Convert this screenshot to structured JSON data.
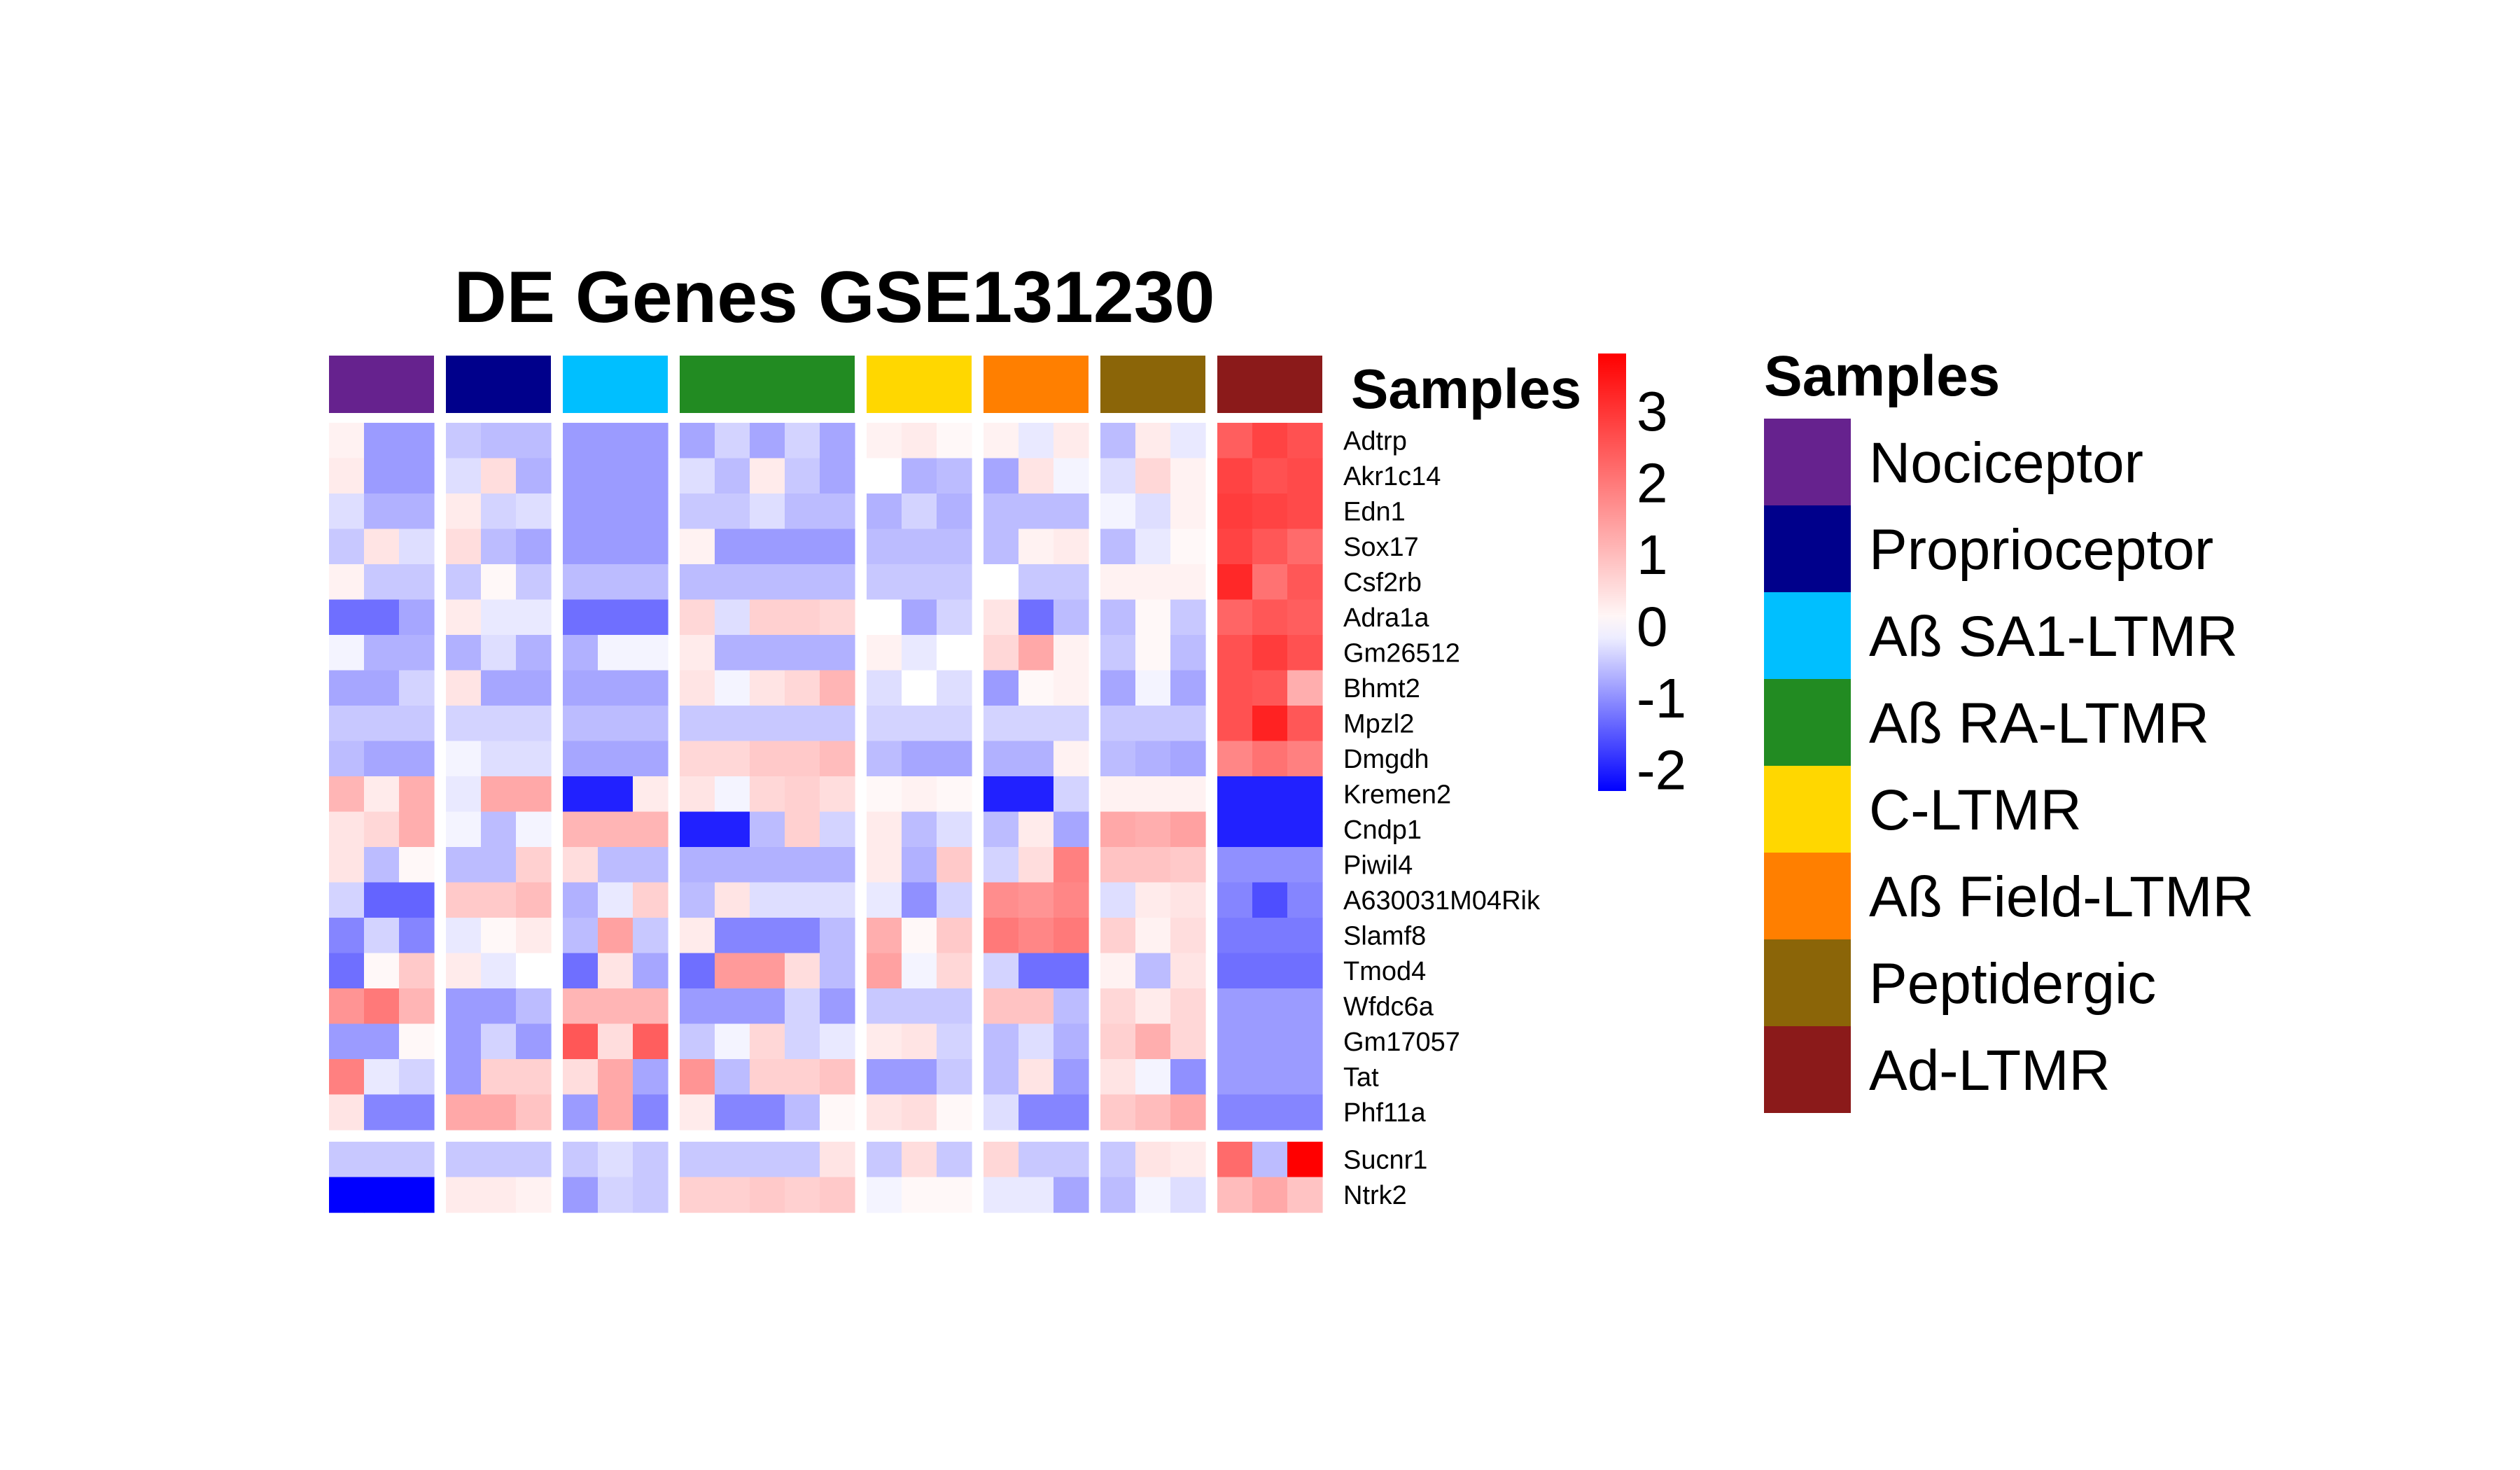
{
  "chart_data": {
    "type": "heatmap",
    "title": "DE Genes GSE131230",
    "annotation_title": "Samples",
    "legend_title": "Samples",
    "scale": {
      "min": -2.3,
      "max": 3.8,
      "ticks": [
        3,
        2,
        1,
        0,
        -1,
        -2
      ],
      "tick_labels": [
        "3",
        "2",
        "1",
        "0",
        "-1",
        "-2"
      ],
      "low_color": "#0000FF",
      "mid_color": "#FFFFFF",
      "high_color": "#FF0000"
    },
    "groups": [
      {
        "name": "Nociceptor",
        "color": "#66228E",
        "n": 3
      },
      {
        "name": "Proprioceptor",
        "color": "#00008B",
        "n": 3
      },
      {
        "name": "Aß SA1-LTMR",
        "color": "#00BFFF",
        "n": 3
      },
      {
        "name": "Aß RA-LTMR",
        "color": "#228B22",
        "n": 5
      },
      {
        "name": "C-LTMR",
        "color": "#FFD700",
        "n": 3
      },
      {
        "name": "Aß Field-LTMR",
        "color": "#FF7F00",
        "n": 3
      },
      {
        "name": "Peptidergic",
        "color": "#8B6508",
        "n": 3
      },
      {
        "name": "Ad-LTMR",
        "color": "#8B1A1A",
        "n": 3
      }
    ],
    "row_split_after": 20,
    "genes": [
      "Adtrp",
      "Akr1c14",
      "Edn1",
      "Sox17",
      "Csf2rb",
      "Adra1a",
      "Gm26512",
      "Bhmt2",
      "Mpzl2",
      "Dmgdh",
      "Kremen2",
      "Cndp1",
      "Piwil4",
      "A630031M04Rik",
      "Slamf8",
      "Tmod4",
      "Wfdc6a",
      "Gm17057",
      "Tat",
      "Phf11a",
      "Sucnr1",
      "Ntrk2"
    ],
    "values": [
      [
        0.2,
        -0.9,
        -0.9,
        -0.5,
        -0.6,
        -0.6,
        -0.9,
        -0.9,
        -0.9,
        -0.8,
        -0.4,
        -0.8,
        -0.4,
        -0.8,
        0.2,
        0.3,
        0.1,
        0.2,
        -0.2,
        0.3,
        -0.6,
        0.3,
        -0.2,
        2.4,
        2.8,
        2.6
      ],
      [
        0.3,
        -0.9,
        -0.9,
        -0.3,
        0.5,
        -0.7,
        -0.9,
        -0.9,
        -0.9,
        -0.3,
        -0.6,
        0.3,
        -0.5,
        -0.8,
        0.0,
        -0.7,
        -0.6,
        -0.8,
        0.4,
        -0.1,
        -0.3,
        0.6,
        0.2,
        2.8,
        2.6,
        2.7
      ],
      [
        -0.3,
        -0.7,
        -0.7,
        0.3,
        -0.4,
        -0.3,
        -0.9,
        -0.9,
        -0.9,
        -0.5,
        -0.5,
        -0.3,
        -0.6,
        -0.6,
        -0.7,
        -0.4,
        -0.7,
        -0.6,
        -0.6,
        -0.6,
        -0.1,
        -0.3,
        0.2,
        2.9,
        2.8,
        2.7
      ],
      [
        -0.5,
        0.4,
        -0.3,
        0.5,
        -0.6,
        -0.8,
        -0.9,
        -0.9,
        -0.9,
        0.2,
        -0.9,
        -0.9,
        -0.9,
        -0.9,
        -0.6,
        -0.6,
        -0.6,
        -0.6,
        0.2,
        0.3,
        -0.6,
        -0.2,
        0.1,
        2.8,
        2.5,
        2.2
      ],
      [
        0.2,
        -0.5,
        -0.5,
        -0.5,
        0.1,
        -0.5,
        -0.6,
        -0.6,
        -0.6,
        -0.6,
        -0.6,
        -0.6,
        -0.6,
        -0.6,
        -0.5,
        -0.5,
        -0.5,
        0.0,
        -0.5,
        -0.5,
        0.2,
        0.2,
        0.2,
        3.2,
        2.1,
        2.5
      ],
      [
        -1.3,
        -1.3,
        -0.8,
        0.3,
        -0.2,
        -0.2,
        -1.3,
        -1.3,
        -1.3,
        0.6,
        -0.3,
        0.7,
        0.7,
        0.6,
        0.0,
        -0.8,
        -0.4,
        0.4,
        -1.3,
        -0.6,
        -0.6,
        0.1,
        -0.5,
        2.3,
        2.5,
        2.4
      ],
      [
        -0.1,
        -0.7,
        -0.7,
        -0.7,
        -0.3,
        -0.7,
        -0.7,
        -0.1,
        -0.1,
        0.3,
        -0.7,
        -0.7,
        -0.7,
        -0.7,
        0.2,
        -0.2,
        0.0,
        0.6,
        1.3,
        0.2,
        -0.5,
        0.1,
        -0.6,
        2.6,
        2.9,
        2.6
      ],
      [
        -0.8,
        -0.8,
        -0.4,
        0.4,
        -0.8,
        -0.8,
        -0.8,
        -0.8,
        -0.8,
        0.4,
        -0.1,
        0.4,
        0.6,
        1.1,
        -0.3,
        0.0,
        -0.3,
        -0.9,
        0.1,
        0.2,
        -0.8,
        -0.1,
        -0.8,
        2.6,
        2.5,
        1.2
      ],
      [
        -0.5,
        -0.5,
        -0.5,
        -0.4,
        -0.4,
        -0.4,
        -0.6,
        -0.6,
        -0.6,
        -0.5,
        -0.5,
        -0.5,
        -0.5,
        -0.5,
        -0.4,
        -0.4,
        -0.4,
        -0.4,
        -0.4,
        -0.4,
        -0.5,
        -0.5,
        -0.5,
        2.6,
        3.3,
        2.5
      ],
      [
        -0.6,
        -0.8,
        -0.8,
        -0.1,
        -0.3,
        -0.3,
        -0.8,
        -0.8,
        -0.8,
        0.6,
        0.6,
        0.8,
        0.8,
        1.0,
        -0.6,
        -0.8,
        -0.8,
        -0.7,
        -0.7,
        0.2,
        -0.6,
        -0.7,
        -0.8,
        1.8,
        2.1,
        1.9
      ],
      [
        1.1,
        0.3,
        1.2,
        -0.2,
        1.3,
        1.3,
        -2.0,
        -2.0,
        0.3,
        0.4,
        -0.1,
        0.6,
        0.7,
        0.5,
        0.1,
        0.2,
        0.1,
        -2.0,
        -2.0,
        -0.4,
        0.2,
        0.2,
        0.2,
        -2.0,
        -2.0,
        -2.0
      ],
      [
        0.4,
        0.6,
        1.2,
        -0.1,
        -0.6,
        -0.1,
        1.1,
        1.1,
        1.1,
        -2.0,
        -2.0,
        -0.6,
        0.7,
        -0.4,
        0.3,
        -0.6,
        -0.3,
        -0.6,
        0.3,
        -0.8,
        1.3,
        1.2,
        1.4,
        -2.0,
        -2.0,
        -2.0
      ],
      [
        0.4,
        -0.6,
        0.1,
        -0.6,
        -0.6,
        0.7,
        0.5,
        -0.6,
        -0.6,
        -0.7,
        -0.7,
        -0.7,
        -0.7,
        -0.7,
        0.3,
        -0.7,
        0.8,
        -0.4,
        0.5,
        1.9,
        0.9,
        0.9,
        0.8,
        -1.0,
        -1.0,
        -1.0
      ],
      [
        -0.4,
        -1.4,
        -1.4,
        0.8,
        0.8,
        1.0,
        -0.7,
        -0.2,
        0.7,
        -0.6,
        0.4,
        -0.3,
        -0.3,
        -0.3,
        -0.2,
        -1.0,
        -0.4,
        1.7,
        1.6,
        1.8,
        -0.3,
        0.3,
        0.4,
        -1.1,
        -1.6,
        -1.1
      ],
      [
        -1.1,
        -0.4,
        -1.1,
        -0.2,
        0.1,
        0.3,
        -0.6,
        1.4,
        -0.5,
        0.3,
        -1.1,
        -1.1,
        -1.1,
        -0.6,
        1.2,
        0.1,
        0.8,
        2.0,
        1.8,
        2.0,
        0.7,
        0.2,
        0.5,
        -1.2,
        -1.2,
        -1.2
      ],
      [
        -1.3,
        0.1,
        0.8,
        0.3,
        -0.2,
        0.0,
        -1.3,
        0.4,
        -0.8,
        -1.3,
        1.5,
        1.5,
        0.5,
        -0.6,
        1.4,
        -0.1,
        0.6,
        -0.4,
        -1.3,
        -1.3,
        0.2,
        -0.6,
        0.4,
        -1.3,
        -1.3,
        -1.3
      ],
      [
        1.6,
        2.0,
        1.1,
        -0.9,
        -0.9,
        -0.6,
        1.1,
        1.1,
        1.1,
        -0.9,
        -0.9,
        -0.9,
        -0.4,
        -0.9,
        -0.5,
        -0.5,
        -0.5,
        0.9,
        0.9,
        -0.6,
        0.6,
        0.3,
        0.6,
        -0.9,
        -0.9,
        -0.9
      ],
      [
        -0.9,
        -0.9,
        0.1,
        -0.9,
        -0.4,
        -0.9,
        2.5,
        0.5,
        2.4,
        -0.5,
        -0.1,
        0.6,
        -0.4,
        -0.2,
        0.3,
        0.4,
        -0.4,
        -0.6,
        -0.3,
        -0.7,
        0.7,
        1.2,
        0.6,
        -0.9,
        -0.9,
        -0.9
      ],
      [
        1.9,
        -0.2,
        -0.4,
        -0.9,
        0.7,
        0.7,
        0.5,
        1.3,
        -0.8,
        1.6,
        -0.6,
        0.7,
        0.7,
        0.9,
        -0.9,
        -0.9,
        -0.5,
        -0.6,
        0.4,
        -0.9,
        0.4,
        -0.1,
        -1.0,
        -0.9,
        -0.9,
        -0.9
      ],
      [
        0.4,
        -1.1,
        -1.1,
        1.3,
        1.3,
        0.9,
        -0.9,
        1.3,
        -1.1,
        0.3,
        -1.1,
        -1.1,
        -0.6,
        0.1,
        0.4,
        0.5,
        0.1,
        -0.3,
        -1.1,
        -1.1,
        0.8,
        1.0,
        1.3,
        -1.1,
        -1.1,
        -1.1
      ],
      [
        -0.5,
        -0.5,
        -0.5,
        -0.5,
        -0.5,
        -0.5,
        -0.5,
        -0.3,
        -0.5,
        -0.5,
        -0.5,
        -0.5,
        -0.5,
        0.4,
        -0.5,
        0.5,
        -0.5,
        0.6,
        -0.5,
        -0.5,
        -0.5,
        0.4,
        0.3,
        2.2,
        -0.6,
        3.8
      ],
      [
        -2.3,
        -2.3,
        -2.3,
        0.3,
        0.3,
        0.2,
        -0.9,
        -0.4,
        -0.5,
        0.7,
        0.7,
        0.8,
        0.7,
        0.8,
        -0.1,
        0.1,
        0.1,
        -0.2,
        -0.2,
        -0.8,
        -0.6,
        -0.1,
        -0.3,
        1.0,
        1.3,
        0.9
      ]
    ]
  }
}
